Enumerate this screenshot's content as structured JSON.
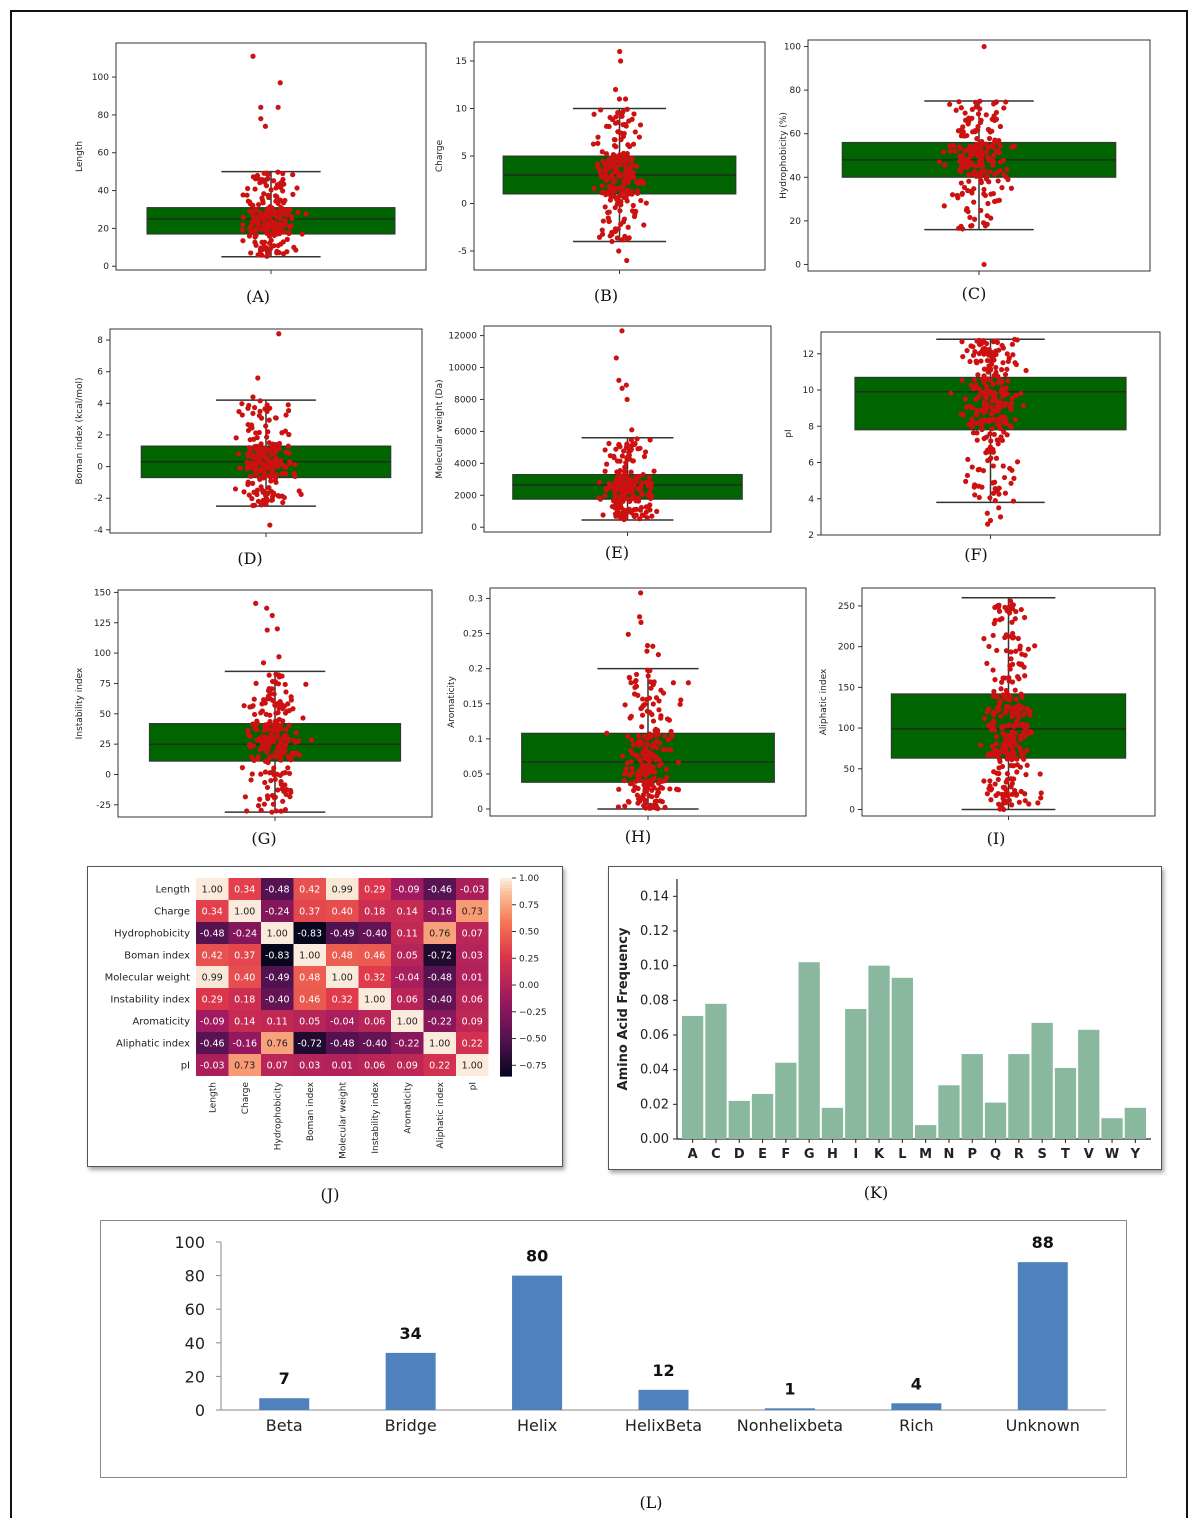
{
  "captions": {
    "a": "(A)",
    "b": "(B)",
    "c": "(C)",
    "d": "(D)",
    "e": "(E)",
    "f": "(F)",
    "g": "(G)",
    "h": "(H)",
    "i": "(I)",
    "j": "(J)",
    "k": "(K)",
    "l": "(L)"
  },
  "colors": {
    "box": "#006400",
    "points": "#cc1111",
    "bars_k": "#8ab89e",
    "bars_l": "#4f81bd"
  },
  "chart_data": [
    {
      "id": "A",
      "type": "box",
      "ylabel": "Length",
      "ylim": [
        -2,
        118
      ],
      "ticks": [
        0,
        20,
        40,
        60,
        80,
        100
      ],
      "stats": {
        "min": 5,
        "q1": 17,
        "median": 25,
        "q3": 31,
        "max": 50
      },
      "outliers": [
        111,
        97,
        84,
        84,
        78,
        74
      ],
      "n_points": 210
    },
    {
      "id": "B",
      "type": "box",
      "ylabel": "Charge",
      "ylim": [
        -7,
        17
      ],
      "ticks": [
        -5,
        0,
        5,
        10,
        15
      ],
      "stats": {
        "min": -4,
        "q1": 1,
        "median": 3,
        "q3": 5,
        "max": 10
      },
      "outliers": [
        16,
        15,
        12,
        11,
        11,
        -5,
        -6
      ],
      "n_points": 210
    },
    {
      "id": "C",
      "type": "box",
      "ylabel": "Hydrophobicity  (%)",
      "ylim": [
        -3,
        103
      ],
      "ticks": [
        0,
        20,
        40,
        60,
        80,
        100
      ],
      "stats": {
        "min": 16,
        "q1": 40,
        "median": 48,
        "q3": 56,
        "max": 75
      },
      "outliers": [
        100,
        0
      ],
      "n_points": 210
    },
    {
      "id": "D",
      "type": "box",
      "ylabel": "Boman index  (kcal/mol)",
      "ylim": [
        -4.2,
        8.7
      ],
      "ticks": [
        -4,
        -2,
        0,
        2,
        4,
        6,
        8
      ],
      "stats": {
        "min": -2.5,
        "q1": -0.7,
        "median": 0.3,
        "q3": 1.3,
        "max": 4.2
      },
      "outliers": [
        8.4,
        5.6,
        4.4,
        -3.7
      ],
      "n_points": 210
    },
    {
      "id": "E",
      "type": "box",
      "ylabel": "Molecular weight  (Da)",
      "ylim": [
        -300,
        12600
      ],
      "ticks": [
        0,
        2000,
        4000,
        6000,
        8000,
        10000,
        12000
      ],
      "stats": {
        "min": 450,
        "q1": 1750,
        "median": 2650,
        "q3": 3300,
        "max": 5600
      },
      "outliers": [
        12300,
        10600,
        9200,
        8900,
        8700,
        8000,
        6100
      ],
      "n_points": 210
    },
    {
      "id": "F",
      "type": "box",
      "ylabel": "pI",
      "ylim": [
        2,
        13.2
      ],
      "ticks": [
        2,
        4,
        6,
        8,
        10,
        12
      ],
      "stats": {
        "min": 3.8,
        "q1": 7.8,
        "median": 9.9,
        "q3": 10.7,
        "max": 12.8
      },
      "outliers": [
        3.5,
        3.2,
        3,
        2.8,
        2.6
      ],
      "n_points": 260
    },
    {
      "id": "G",
      "type": "box",
      "ylabel": "Instability index",
      "ylim": [
        -35,
        152
      ],
      "ticks": [
        -25,
        0,
        25,
        50,
        75,
        100,
        125,
        150
      ],
      "stats": {
        "min": -31,
        "q1": 11,
        "median": 25,
        "q3": 42,
        "max": 85
      },
      "outliers": [
        141,
        137,
        131,
        120,
        119,
        97,
        92
      ],
      "n_points": 220
    },
    {
      "id": "H",
      "type": "box",
      "ylabel": "Aromaticity",
      "ylim": [
        -0.01,
        0.315
      ],
      "ticks": [
        0,
        0.05,
        0.1,
        0.15,
        0.2,
        0.25,
        0.3
      ],
      "stats": {
        "min": 0,
        "q1": 0.038,
        "median": 0.067,
        "q3": 0.108,
        "max": 0.2
      },
      "outliers": [
        0.308,
        0.274,
        0.266,
        0.249,
        0.233,
        0.232,
        0.225,
        0.22
      ],
      "n_points": 220
    },
    {
      "id": "I",
      "type": "box",
      "ylabel": "Aliphatic index",
      "ylim": [
        -8,
        272
      ],
      "ticks": [
        0,
        50,
        100,
        150,
        200,
        250
      ],
      "stats": {
        "min": 0,
        "q1": 63,
        "median": 99,
        "q3": 142,
        "max": 260
      },
      "outliers": [],
      "n_points": 280
    },
    {
      "id": "J",
      "type": "heatmap",
      "labels": [
        "Length",
        "Charge",
        "Hydrophobicity",
        "Boman index",
        "Molecular weight",
        "Instability index",
        "Aromaticity",
        "Aliphatic index",
        "pI"
      ],
      "matrix": [
        [
          1.0,
          0.34,
          -0.48,
          0.42,
          0.99,
          0.29,
          -0.09,
          -0.46,
          -0.03
        ],
        [
          0.34,
          1.0,
          -0.24,
          0.37,
          0.4,
          0.18,
          0.14,
          -0.16,
          0.73
        ],
        [
          -0.48,
          -0.24,
          1.0,
          -0.83,
          -0.49,
          -0.4,
          0.11,
          0.76,
          0.07
        ],
        [
          0.42,
          0.37,
          -0.83,
          1.0,
          0.48,
          0.46,
          0.05,
          -0.72,
          0.03
        ],
        [
          0.99,
          0.4,
          -0.49,
          0.48,
          1.0,
          0.32,
          -0.04,
          -0.48,
          0.01
        ],
        [
          0.29,
          0.18,
          -0.4,
          0.46,
          0.32,
          1.0,
          0.06,
          -0.4,
          0.06
        ],
        [
          -0.09,
          0.14,
          0.11,
          0.05,
          -0.04,
          0.06,
          1.0,
          -0.22,
          0.09
        ],
        [
          -0.46,
          -0.16,
          0.76,
          -0.72,
          -0.48,
          -0.4,
          -0.22,
          1.0,
          0.22
        ],
        [
          -0.03,
          0.73,
          0.07,
          0.03,
          0.01,
          0.06,
          0.09,
          0.22,
          1.0
        ]
      ],
      "colorbar_ticks": [
        "1.00",
        "0.75",
        "0.50",
        "0.25",
        "0.00",
        "−0.25",
        "−0.50",
        "−0.75"
      ],
      "colorbar_values": [
        1,
        0.75,
        0.5,
        0.25,
        0,
        -0.25,
        -0.5,
        -0.75
      ],
      "range": [
        -0.85,
        1.0
      ]
    },
    {
      "id": "K",
      "type": "bar",
      "ylabel": "Amino Acid Frequency",
      "ylim": [
        0,
        0.15
      ],
      "ticks": [
        "0.00",
        "0.02",
        "0.04",
        "0.06",
        "0.08",
        "0.10",
        "0.12",
        "0.14"
      ],
      "categories": [
        "A",
        "C",
        "D",
        "E",
        "F",
        "G",
        "H",
        "I",
        "K",
        "L",
        "M",
        "N",
        "P",
        "Q",
        "R",
        "S",
        "T",
        "V",
        "W",
        "Y"
      ],
      "values": [
        0.071,
        0.078,
        0.022,
        0.026,
        0.044,
        0.102,
        0.018,
        0.075,
        0.1,
        0.093,
        0.008,
        0.031,
        0.049,
        0.021,
        0.049,
        0.067,
        0.041,
        0.063,
        0.012,
        0.018
      ]
    },
    {
      "id": "L",
      "type": "bar",
      "ylim": [
        0,
        100
      ],
      "ticks": [
        "0",
        "20",
        "40",
        "60",
        "80",
        "100"
      ],
      "categories": [
        "Beta",
        "Bridge",
        "Helix",
        "HelixBeta",
        "Nonhelixbeta",
        "Rich",
        "Unknown"
      ],
      "values": [
        7,
        34,
        80,
        12,
        1,
        4,
        88
      ],
      "data_labels": [
        "7",
        "34",
        "80",
        "12",
        "1",
        "4",
        "88"
      ]
    }
  ]
}
